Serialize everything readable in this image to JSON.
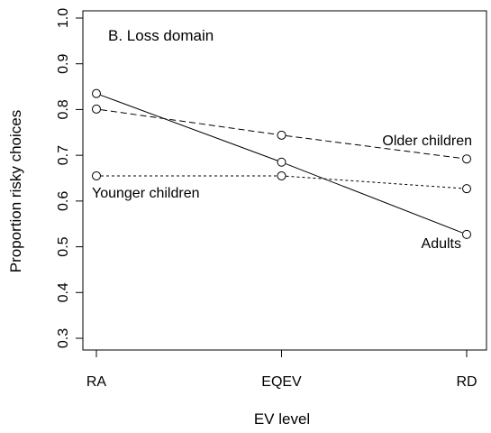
{
  "chart_data": {
    "type": "line",
    "title": "B. Loss domain",
    "xlabel": "EV level",
    "ylabel": "Proportion risky choices",
    "categories": [
      "RA",
      "EQEV",
      "RD"
    ],
    "ylim": [
      0.3,
      1.0
    ],
    "yticks": [
      "0.3",
      "0.4",
      "0.5",
      "0.6",
      "0.7",
      "0.8",
      "0.9",
      "1.0"
    ],
    "grid": false,
    "legend": "none (series labeled directly on lines)",
    "series": [
      {
        "name": "Adults",
        "values": [
          0.835,
          0.685,
          0.527
        ],
        "line_style": "solid",
        "marker": "open-circle"
      },
      {
        "name": "Older children",
        "values": [
          0.801,
          0.744,
          0.692
        ],
        "line_style": "dashed",
        "marker": "open-circle"
      },
      {
        "name": "Younger children",
        "values": [
          0.655,
          0.655,
          0.627
        ],
        "line_style": "dotted",
        "marker": "open-circle"
      }
    ]
  }
}
